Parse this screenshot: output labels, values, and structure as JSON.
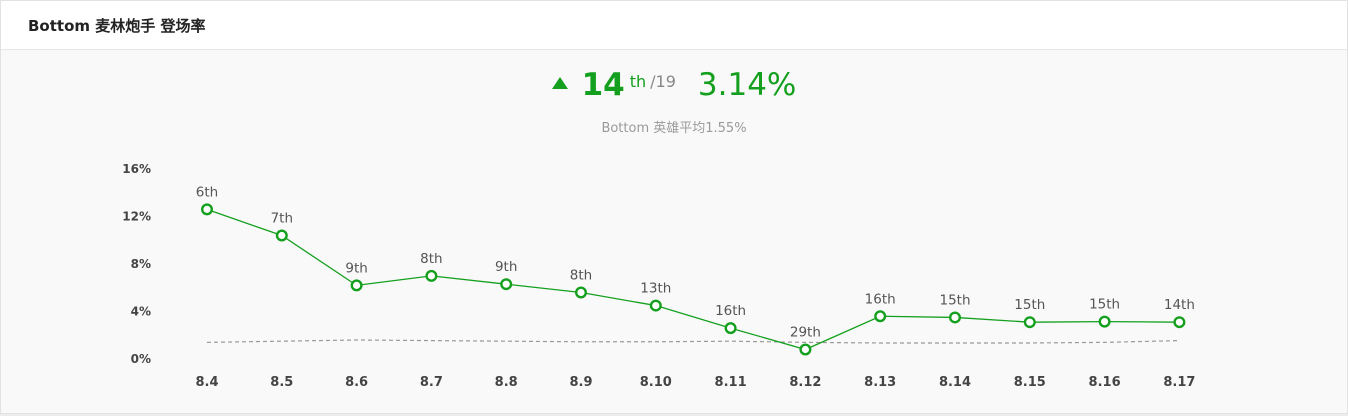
{
  "header": {
    "title": "Bottom 麦林炮手 登场率"
  },
  "summary": {
    "trend_icon": "up-triangle-icon",
    "rank": "14",
    "rank_suffix": "th",
    "total": "/19",
    "rate": "3.14%",
    "average_text": "Bottom 英雄平均1.55%"
  },
  "colors": {
    "accent": "#14a01e",
    "average_line": "#999999",
    "muted": "#9a9a9a"
  },
  "chart_data": {
    "type": "line",
    "title": "",
    "xlabel": "",
    "ylabel": "",
    "categories": [
      "8.4",
      "8.5",
      "8.6",
      "8.7",
      "8.8",
      "8.9",
      "8.10",
      "8.11",
      "8.12",
      "8.13",
      "8.14",
      "8.15",
      "8.16",
      "8.17"
    ],
    "series": [
      {
        "values": [
          12.6,
          10.4,
          6.2,
          7.0,
          6.3,
          5.6,
          4.5,
          2.6,
          0.8,
          3.6,
          3.5,
          3.1,
          3.15,
          3.1
        ],
        "point_labels": [
          "6th",
          "7th",
          "9th",
          "8th",
          "9th",
          "8th",
          "13th",
          "16th",
          "29th",
          "16th",
          "15th",
          "15th",
          "15th",
          "14th"
        ]
      },
      {
        "style": "dashed",
        "values": [
          1.4,
          1.5,
          1.6,
          1.55,
          1.5,
          1.45,
          1.45,
          1.5,
          1.4,
          1.35,
          1.35,
          1.35,
          1.4,
          1.55
        ]
      }
    ],
    "ylim": [
      0,
      16
    ],
    "yticks": [
      0,
      4,
      8,
      12,
      16
    ],
    "ytick_labels": [
      "0%",
      "4%",
      "8%",
      "12%",
      "16%"
    ],
    "grid": false
  }
}
